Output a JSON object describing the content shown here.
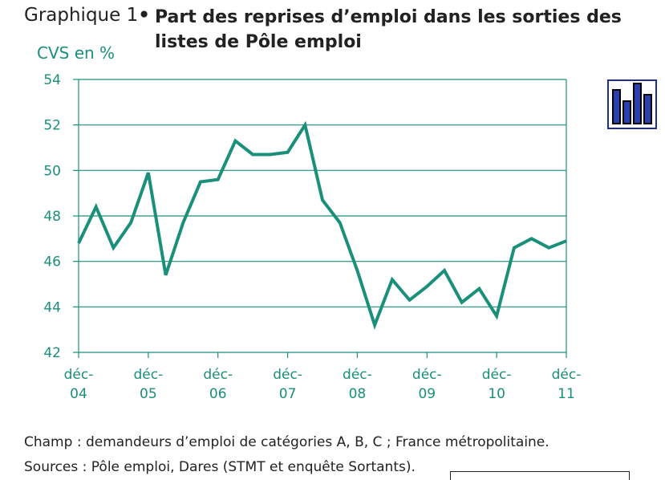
{
  "header": {
    "lead": "Graphique 1",
    "bullet": "•",
    "title": "Part des reprises d’emploi dans les sorties des listes de Pôle emploi"
  },
  "chart_data": {
    "type": "line",
    "ylabel": "CVS en %",
    "ylim": [
      42,
      54
    ],
    "yticks": [
      "42",
      "44",
      "46",
      "48",
      "50",
      "52",
      "54"
    ],
    "xticks": [
      {
        "label": [
          "déc-",
          "04"
        ],
        "t": 0
      },
      {
        "label": [
          "déc-",
          "05"
        ],
        "t": 4
      },
      {
        "label": [
          "déc-",
          "06"
        ],
        "t": 8
      },
      {
        "label": [
          "déc-",
          "07"
        ],
        "t": 12
      },
      {
        "label": [
          "déc-",
          "08"
        ],
        "t": 16
      },
      {
        "label": [
          "déc-",
          "09"
        ],
        "t": 20
      },
      {
        "label": [
          "déc-",
          "10"
        ],
        "t": 24
      },
      {
        "label": [
          "déc-",
          "11"
        ],
        "t": 28
      }
    ],
    "x_unit": "quarters since déc-04",
    "series": [
      {
        "name": "",
        "color": "#1a8f7a",
        "x": [
          0,
          1,
          2,
          3,
          4,
          5,
          6,
          7,
          8,
          9,
          10,
          11,
          12,
          13,
          14,
          15,
          16,
          17,
          18,
          19,
          20,
          21,
          22,
          23,
          24,
          25,
          26,
          27,
          28
        ],
        "values": [
          46.8,
          48.4,
          46.6,
          47.7,
          49.9,
          45.4,
          47.7,
          49.5,
          49.6,
          51.3,
          50.7,
          50.7,
          50.8,
          52.0,
          48.7,
          47.7,
          45.6,
          43.2,
          45.2,
          44.3,
          44.9,
          45.6,
          44.2,
          44.8,
          43.6,
          46.6,
          47.0,
          46.6,
          46.9
        ]
      }
    ],
    "grid": true
  },
  "notes": {
    "champ": "Champ : demandeurs d’emploi de catégories A, B, C ; France métropolitaine.",
    "sources": "Sources : Pôle emploi, Dares (STMT et enquête Sortants)."
  },
  "colors": {
    "accent": "#1a8f7a",
    "grid": "#1a8f7a",
    "logo": "#2a3fb0"
  },
  "icons": {
    "logo": "bar-chart-logo-icon"
  }
}
